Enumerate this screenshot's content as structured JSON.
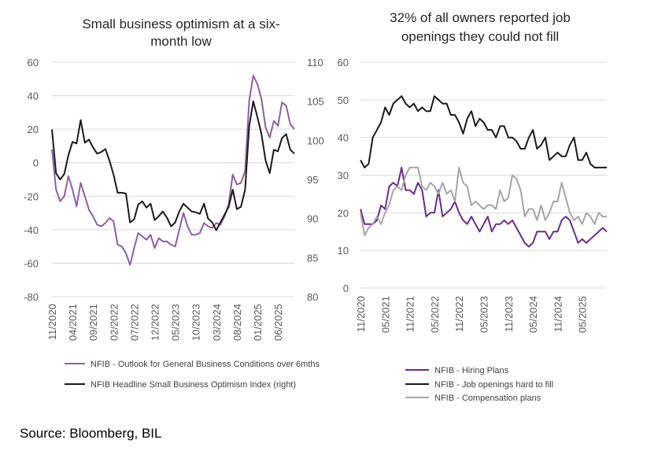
{
  "chart_data": [
    {
      "type": "line",
      "title_lines": [
        "Small business optimism at a six-",
        "month low"
      ],
      "ylim": [
        -80,
        60
      ],
      "yticks": [
        60,
        40,
        20,
        0,
        -20,
        -40,
        -60,
        -80
      ],
      "y2lim": [
        80,
        110
      ],
      "y2ticks": [
        110,
        105,
        100,
        95,
        90,
        85,
        80
      ],
      "xticks": [
        "11/2020",
        "04/2021",
        "09/2021",
        "02/2022",
        "07/2022",
        "12/2022",
        "05/2023",
        "10/2023",
        "03/2024",
        "08/2024",
        "01/2025",
        "06/2025"
      ],
      "x_start": "11/2020",
      "x_step_months": 1,
      "series": [
        {
          "name": "NFIB - Outlook for General Business Conditions over 6mths",
          "axis": "left",
          "color": "#8e5ea2",
          "values": [
            8,
            -16,
            -23,
            -20,
            -8,
            -16,
            -26,
            -12,
            -20,
            -28,
            -32,
            -37,
            -38,
            -36,
            -33,
            -35,
            -49,
            -50,
            -54,
            -61,
            -51,
            -42,
            -44,
            -46,
            -43,
            -51,
            -45,
            -47,
            -47,
            -49,
            -50,
            -40,
            -30,
            -38,
            -43,
            -43,
            -42,
            -36,
            -38,
            -39,
            -36,
            -37,
            -32,
            -25,
            -7,
            -13,
            -12,
            -5,
            37,
            52,
            47,
            38,
            21,
            15,
            25,
            22,
            36,
            34,
            23,
            20
          ]
        },
        {
          "name": "NFIB Headline Small Business Optimism Index (right)",
          "axis": "right",
          "color": "#1a1a1a",
          "values": [
            101.4,
            95.8,
            95.0,
            95.7,
            98.1,
            99.8,
            99.6,
            102.6,
            99.7,
            100.1,
            99.1,
            98.3,
            98.5,
            98.9,
            97.4,
            95.6,
            93.3,
            93.3,
            93.2,
            89.5,
            89.9,
            91.8,
            92.2,
            91.4,
            91.9,
            89.8,
            90.3,
            90.9,
            90.1,
            89.0,
            89.5,
            90.9,
            91.9,
            91.4,
            90.9,
            90.8,
            90.6,
            91.9,
            90.0,
            89.5,
            88.5,
            89.5,
            90.5,
            91.5,
            93.7,
            91.2,
            91.5,
            93.7,
            101.8,
            105.0,
            103.0,
            100.8,
            97.4,
            95.8,
            98.8,
            98.6,
            100.3,
            100.8,
            98.8,
            98.3
          ]
        }
      ]
    },
    {
      "type": "line",
      "title_lines": [
        "32% of all owners reported job",
        "openings they could not fill"
      ],
      "ylim": [
        0,
        60
      ],
      "yticks": [
        60,
        50,
        40,
        30,
        20,
        10,
        0
      ],
      "xticks": [
        "11/2020",
        "05/2021",
        "11/2021",
        "05/2022",
        "11/2022",
        "05/2023",
        "11/2023",
        "05/2024",
        "11/2024",
        "05/2025"
      ],
      "x_start": "11/2020",
      "x_step_months": 1,
      "series": [
        {
          "name": "NFIB - Hiring Plans",
          "color": "#6a2c8e",
          "values": [
            21,
            17,
            17,
            17,
            18,
            22,
            21,
            27,
            28,
            27,
            32,
            26,
            26,
            25,
            28,
            26,
            19,
            20,
            20,
            26,
            19,
            20,
            21,
            23,
            20,
            18,
            17,
            19,
            17,
            15,
            17,
            19,
            15,
            17,
            17,
            18,
            17,
            18,
            16,
            14,
            12,
            11,
            12,
            15,
            15,
            15,
            13,
            15,
            15,
            18,
            19,
            18,
            15,
            12,
            13,
            12,
            13,
            14,
            15,
            16,
            15
          ]
        },
        {
          "name": "NFIB - Job openings hard to fill",
          "color": "#1a1a1a",
          "values": [
            34,
            32,
            33,
            40,
            42,
            44,
            48,
            46,
            49,
            50,
            51,
            49,
            48,
            49,
            47,
            48,
            47,
            47,
            51,
            50,
            49,
            49,
            46,
            46,
            44,
            41,
            45,
            47,
            43,
            45,
            44,
            42,
            42,
            40,
            43,
            43,
            40,
            40,
            39,
            37,
            37,
            40,
            42,
            37,
            38,
            40,
            34,
            35,
            36,
            35,
            35,
            38,
            40,
            34,
            34,
            36,
            33,
            32,
            32,
            32,
            32
          ]
        },
        {
          "name": "NFIB - Compensation plans",
          "color": "#a6a6a6",
          "values": [
            20,
            14,
            16,
            17,
            19,
            17,
            20,
            22,
            26,
            27,
            26,
            30,
            32,
            32,
            32,
            27,
            26,
            28,
            27,
            25,
            28,
            25,
            26,
            23,
            32,
            28,
            27,
            22,
            23,
            22,
            21,
            22,
            22,
            21,
            26,
            23,
            24,
            30,
            29,
            26,
            19,
            21,
            21,
            18,
            22,
            18,
            20,
            23,
            23,
            28,
            24,
            20,
            18,
            19,
            17,
            20,
            19,
            17,
            20,
            19,
            19
          ]
        }
      ]
    }
  ],
  "source": "Source: Bloomberg, BIL"
}
